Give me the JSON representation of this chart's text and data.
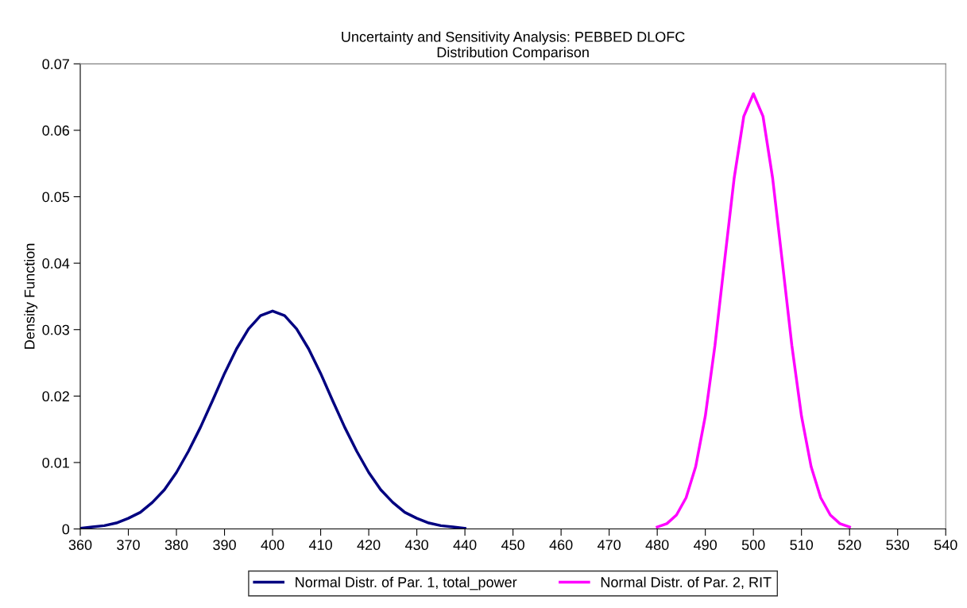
{
  "chart_data": {
    "type": "line",
    "title": "Uncertainty and Sensitivity Analysis: PEBBED DLOFC\nDistribution Comparison",
    "ylabel": "Density Function",
    "series": [
      {
        "name": "Normal Distr. of Par. 1, total_power",
        "color": "#000080",
        "x": [
          360,
          362.5,
          365,
          367.5,
          370,
          372.5,
          375,
          377.5,
          380,
          382.5,
          385,
          387.5,
          390,
          392.5,
          395,
          397.5,
          400,
          402.5,
          405,
          407.5,
          410,
          412.5,
          415,
          417.5,
          420,
          422.5,
          425,
          427.5,
          430,
          432.5,
          435,
          437.5,
          440
        ],
        "values": [
          0.0001,
          0.0003,
          0.0005,
          0.0009,
          0.0016,
          0.0025,
          0.004,
          0.0059,
          0.0085,
          0.0117,
          0.0153,
          0.0193,
          0.0234,
          0.0271,
          0.0301,
          0.0321,
          0.0328,
          0.0321,
          0.0301,
          0.0271,
          0.0234,
          0.0193,
          0.0153,
          0.0117,
          0.0085,
          0.0059,
          0.004,
          0.0025,
          0.0016,
          0.0009,
          0.0005,
          0.0003,
          0.0001
        ]
      },
      {
        "name": "Normal Distr. of Par. 2, RIT",
        "color": "#ff00ff",
        "x": [
          480,
          482,
          484,
          486,
          488,
          490,
          492,
          494,
          496,
          498,
          500,
          502,
          504,
          506,
          508,
          510,
          512,
          514,
          516,
          518,
          520
        ],
        "values": [
          0.0003,
          0.0008,
          0.0021,
          0.0047,
          0.0094,
          0.017,
          0.0276,
          0.0403,
          0.0528,
          0.0621,
          0.0655,
          0.0621,
          0.0528,
          0.0403,
          0.0276,
          0.017,
          0.0094,
          0.0047,
          0.0021,
          0.0008,
          0.0003
        ]
      }
    ],
    "xlim": [
      360,
      540
    ],
    "xticks": [
      360,
      370,
      380,
      390,
      400,
      410,
      420,
      430,
      440,
      450,
      460,
      470,
      480,
      490,
      500,
      510,
      520,
      530,
      540
    ],
    "ylim": [
      0,
      0.07
    ],
    "yticks": [
      0,
      0.01,
      0.02,
      0.03,
      0.04,
      0.05,
      0.06,
      0.07
    ],
    "grid": false,
    "legend": "bottom",
    "marker": "none",
    "line_style": "solid"
  }
}
